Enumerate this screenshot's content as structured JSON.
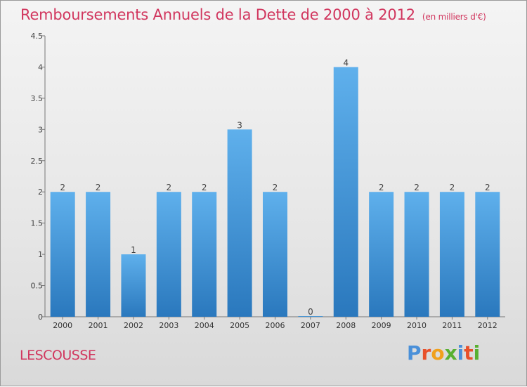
{
  "title": "Remboursements Annuels de la Dette de 2000 à 2012",
  "unit": "(en milliers d'€)",
  "commune": "LESCOUSSE",
  "logo": {
    "letters": [
      "P",
      "r",
      "o",
      "x",
      "i",
      "t",
      "i"
    ],
    "colors": [
      "#4a90d9",
      "#e8502a",
      "#f0a01c",
      "#58b031",
      "#4a90d9",
      "#e8502a",
      "#58b031"
    ]
  },
  "colors": {
    "title": "#d1365e",
    "bar_light": "#5fb0ec",
    "bar_dark": "#2a78bd"
  },
  "chart_data": {
    "type": "bar",
    "categories": [
      "2000",
      "2001",
      "2002",
      "2003",
      "2004",
      "2005",
      "2006",
      "2007",
      "2008",
      "2009",
      "2010",
      "2011",
      "2012"
    ],
    "values": [
      2,
      2,
      1,
      2,
      2,
      3,
      2,
      0,
      4,
      2,
      2,
      2,
      2
    ],
    "data_labels": [
      "2",
      "2",
      "1",
      "2",
      "2",
      "3",
      "2",
      "0",
      "4",
      "2",
      "2",
      "2",
      "2"
    ],
    "yticks": [
      "0",
      "0.5",
      "1",
      "1.5",
      "2",
      "2.5",
      "3",
      "3.5",
      "4",
      "4.5"
    ],
    "ylim": [
      0,
      4.5
    ],
    "grid": false,
    "legend": "none"
  }
}
